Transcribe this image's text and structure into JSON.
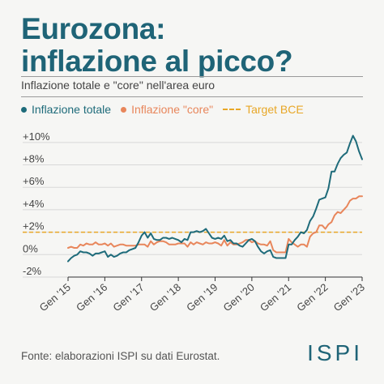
{
  "header": {
    "title_line1": "Eurozona:",
    "title_line2": "inflazione al picco?",
    "subtitle": "Inflazione totale e \"core\" nell'area euro"
  },
  "colors": {
    "title": "#1f6477",
    "total": "#1e6b7a",
    "core": "#e8865b",
    "target": "#e8a727"
  },
  "footer": {
    "source": "Fonte: elaborazioni ISPI su dati Eurostat.",
    "logo": "ISPI"
  },
  "chart_data": {
    "type": "line",
    "ylim": [
      -2,
      11
    ],
    "xlim": [
      "2015-01",
      "2023-01"
    ],
    "y_ticks": [
      {
        "value": 10,
        "label": "+10%"
      },
      {
        "value": 8,
        "label": "+8%"
      },
      {
        "value": 6,
        "label": "+6%"
      },
      {
        "value": 4,
        "label": "+4%"
      },
      {
        "value": 2,
        "label": "+2%"
      },
      {
        "value": 0,
        "label": "0%"
      },
      {
        "value": -2,
        "label": "-2%"
      }
    ],
    "x_ticks": [
      {
        "value": "2015-01",
        "label": "Gen '15"
      },
      {
        "value": "2016-01",
        "label": "Gen '16"
      },
      {
        "value": "2017-01",
        "label": "Gen '17"
      },
      {
        "value": "2018-01",
        "label": "Gen '18"
      },
      {
        "value": "2019-01",
        "label": "Gen '19"
      },
      {
        "value": "2020-01",
        "label": "Gen '20"
      },
      {
        "value": "2021-01",
        "label": "Gen '21"
      },
      {
        "value": "2022-01",
        "label": "Gen '22"
      },
      {
        "value": "2023-01",
        "label": "Gen '23"
      }
    ],
    "legend_position": "top-left",
    "target": {
      "name": "Target BCE",
      "value": 2
    },
    "series": [
      {
        "name": "Inflazione totale",
        "key": "total",
        "points": [
          [
            "2015-01",
            -0.6
          ],
          [
            "2015-02",
            -0.3
          ],
          [
            "2015-03",
            -0.1
          ],
          [
            "2015-04",
            0.0
          ],
          [
            "2015-05",
            0.3
          ],
          [
            "2015-06",
            0.2
          ],
          [
            "2015-07",
            0.2
          ],
          [
            "2015-08",
            0.1
          ],
          [
            "2015-09",
            -0.1
          ],
          [
            "2015-10",
            0.1
          ],
          [
            "2015-11",
            0.1
          ],
          [
            "2015-12",
            0.2
          ],
          [
            "2016-01",
            0.3
          ],
          [
            "2016-02",
            -0.2
          ],
          [
            "2016-03",
            0.0
          ],
          [
            "2016-04",
            -0.2
          ],
          [
            "2016-05",
            -0.1
          ],
          [
            "2016-06",
            0.1
          ],
          [
            "2016-07",
            0.2
          ],
          [
            "2016-08",
            0.2
          ],
          [
            "2016-09",
            0.4
          ],
          [
            "2016-10",
            0.5
          ],
          [
            "2016-11",
            0.6
          ],
          [
            "2016-12",
            1.1
          ],
          [
            "2017-01",
            1.7
          ],
          [
            "2017-02",
            2.0
          ],
          [
            "2017-03",
            1.5
          ],
          [
            "2017-04",
            1.9
          ],
          [
            "2017-05",
            1.4
          ],
          [
            "2017-06",
            1.3
          ],
          [
            "2017-07",
            1.3
          ],
          [
            "2017-08",
            1.5
          ],
          [
            "2017-09",
            1.5
          ],
          [
            "2017-10",
            1.4
          ],
          [
            "2017-11",
            1.5
          ],
          [
            "2017-12",
            1.4
          ],
          [
            "2018-01",
            1.3
          ],
          [
            "2018-02",
            1.1
          ],
          [
            "2018-03",
            1.4
          ],
          [
            "2018-04",
            1.3
          ],
          [
            "2018-05",
            2.0
          ],
          [
            "2018-06",
            2.0
          ],
          [
            "2018-07",
            2.1
          ],
          [
            "2018-08",
            2.0
          ],
          [
            "2018-09",
            2.1
          ],
          [
            "2018-10",
            2.3
          ],
          [
            "2018-11",
            1.9
          ],
          [
            "2018-12",
            1.5
          ],
          [
            "2019-01",
            1.4
          ],
          [
            "2019-02",
            1.5
          ],
          [
            "2019-03",
            1.4
          ],
          [
            "2019-04",
            1.7
          ],
          [
            "2019-05",
            1.2
          ],
          [
            "2019-06",
            1.3
          ],
          [
            "2019-07",
            1.0
          ],
          [
            "2019-08",
            1.0
          ],
          [
            "2019-09",
            0.8
          ],
          [
            "2019-10",
            0.7
          ],
          [
            "2019-11",
            1.0
          ],
          [
            "2019-12",
            1.3
          ],
          [
            "2020-01",
            1.4
          ],
          [
            "2020-02",
            1.2
          ],
          [
            "2020-03",
            0.7
          ],
          [
            "2020-04",
            0.3
          ],
          [
            "2020-05",
            0.1
          ],
          [
            "2020-06",
            0.3
          ],
          [
            "2020-07",
            0.4
          ],
          [
            "2020-08",
            -0.2
          ],
          [
            "2020-09",
            -0.3
          ],
          [
            "2020-10",
            -0.3
          ],
          [
            "2020-11",
            -0.3
          ],
          [
            "2020-12",
            -0.3
          ],
          [
            "2021-01",
            0.9
          ],
          [
            "2021-02",
            0.9
          ],
          [
            "2021-03",
            1.3
          ],
          [
            "2021-04",
            1.6
          ],
          [
            "2021-05",
            2.0
          ],
          [
            "2021-06",
            1.9
          ],
          [
            "2021-07",
            2.2
          ],
          [
            "2021-08",
            3.0
          ],
          [
            "2021-09",
            3.4
          ],
          [
            "2021-10",
            4.1
          ],
          [
            "2021-11",
            4.9
          ],
          [
            "2021-12",
            5.0
          ],
          [
            "2022-01",
            5.1
          ],
          [
            "2022-02",
            5.9
          ],
          [
            "2022-03",
            7.4
          ],
          [
            "2022-04",
            7.4
          ],
          [
            "2022-05",
            8.1
          ],
          [
            "2022-06",
            8.6
          ],
          [
            "2022-07",
            8.9
          ],
          [
            "2022-08",
            9.1
          ],
          [
            "2022-09",
            9.9
          ],
          [
            "2022-10",
            10.6
          ],
          [
            "2022-11",
            10.1
          ],
          [
            "2022-12",
            9.2
          ],
          [
            "2023-01",
            8.5
          ]
        ]
      },
      {
        "name": "Inflazione \"core\"",
        "key": "core",
        "points": [
          [
            "2015-01",
            0.6
          ],
          [
            "2015-02",
            0.7
          ],
          [
            "2015-03",
            0.6
          ],
          [
            "2015-04",
            0.6
          ],
          [
            "2015-05",
            0.9
          ],
          [
            "2015-06",
            0.8
          ],
          [
            "2015-07",
            1.0
          ],
          [
            "2015-08",
            0.9
          ],
          [
            "2015-09",
            0.9
          ],
          [
            "2015-10",
            1.1
          ],
          [
            "2015-11",
            0.9
          ],
          [
            "2015-12",
            0.9
          ],
          [
            "2016-01",
            1.0
          ],
          [
            "2016-02",
            0.8
          ],
          [
            "2016-03",
            1.0
          ],
          [
            "2016-04",
            0.7
          ],
          [
            "2016-05",
            0.8
          ],
          [
            "2016-06",
            0.9
          ],
          [
            "2016-07",
            0.9
          ],
          [
            "2016-08",
            0.8
          ],
          [
            "2016-09",
            0.8
          ],
          [
            "2016-10",
            0.8
          ],
          [
            "2016-11",
            0.8
          ],
          [
            "2016-12",
            0.9
          ],
          [
            "2017-01",
            0.9
          ],
          [
            "2017-02",
            0.9
          ],
          [
            "2017-03",
            0.7
          ],
          [
            "2017-04",
            1.2
          ],
          [
            "2017-05",
            0.9
          ],
          [
            "2017-06",
            1.1
          ],
          [
            "2017-07",
            1.2
          ],
          [
            "2017-08",
            1.2
          ],
          [
            "2017-09",
            1.1
          ],
          [
            "2017-10",
            0.9
          ],
          [
            "2017-11",
            0.9
          ],
          [
            "2017-12",
            0.9
          ],
          [
            "2018-01",
            1.0
          ],
          [
            "2018-02",
            1.0
          ],
          [
            "2018-03",
            1.0
          ],
          [
            "2018-04",
            0.7
          ],
          [
            "2018-05",
            1.1
          ],
          [
            "2018-06",
            0.9
          ],
          [
            "2018-07",
            1.1
          ],
          [
            "2018-08",
            1.0
          ],
          [
            "2018-09",
            0.9
          ],
          [
            "2018-10",
            1.1
          ],
          [
            "2018-11",
            1.0
          ],
          [
            "2018-12",
            1.0
          ],
          [
            "2019-01",
            1.1
          ],
          [
            "2019-02",
            1.0
          ],
          [
            "2019-03",
            0.8
          ],
          [
            "2019-04",
            1.3
          ],
          [
            "2019-05",
            0.8
          ],
          [
            "2019-06",
            1.1
          ],
          [
            "2019-07",
            0.9
          ],
          [
            "2019-08",
            0.9
          ],
          [
            "2019-09",
            1.0
          ],
          [
            "2019-10",
            1.1
          ],
          [
            "2019-11",
            1.3
          ],
          [
            "2019-12",
            1.3
          ],
          [
            "2020-01",
            1.1
          ],
          [
            "2020-02",
            1.2
          ],
          [
            "2020-03",
            1.0
          ],
          [
            "2020-04",
            0.9
          ],
          [
            "2020-05",
            0.9
          ],
          [
            "2020-06",
            0.8
          ],
          [
            "2020-07",
            1.2
          ],
          [
            "2020-08",
            0.4
          ],
          [
            "2020-09",
            0.2
          ],
          [
            "2020-10",
            0.2
          ],
          [
            "2020-11",
            0.2
          ],
          [
            "2020-12",
            0.2
          ],
          [
            "2021-01",
            1.4
          ],
          [
            "2021-02",
            1.1
          ],
          [
            "2021-03",
            0.9
          ],
          [
            "2021-04",
            0.7
          ],
          [
            "2021-05",
            0.9
          ],
          [
            "2021-06",
            0.9
          ],
          [
            "2021-07",
            0.7
          ],
          [
            "2021-08",
            1.6
          ],
          [
            "2021-09",
            1.9
          ],
          [
            "2021-10",
            2.0
          ],
          [
            "2021-11",
            2.6
          ],
          [
            "2021-12",
            2.6
          ],
          [
            "2022-01",
            2.3
          ],
          [
            "2022-02",
            2.7
          ],
          [
            "2022-03",
            2.9
          ],
          [
            "2022-04",
            3.5
          ],
          [
            "2022-05",
            3.8
          ],
          [
            "2022-06",
            3.7
          ],
          [
            "2022-07",
            4.0
          ],
          [
            "2022-08",
            4.3
          ],
          [
            "2022-09",
            4.8
          ],
          [
            "2022-10",
            5.0
          ],
          [
            "2022-11",
            5.0
          ],
          [
            "2022-12",
            5.2
          ],
          [
            "2023-01",
            5.2
          ]
        ]
      }
    ]
  }
}
